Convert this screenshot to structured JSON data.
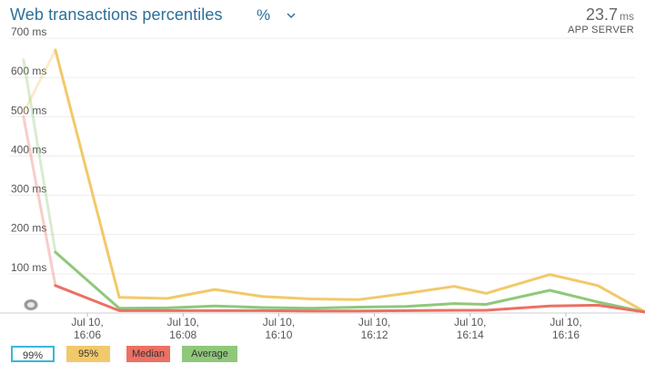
{
  "header": {
    "title": "Web transactions percentiles",
    "percent_toggle": "%",
    "summary_value": "23.7",
    "summary_unit": "ms",
    "summary_label": "APP SERVER"
  },
  "legend": [
    {
      "label": "99%",
      "color": "#3bb6d9",
      "style": "outline"
    },
    {
      "label": "95%",
      "color": "#f2c96a",
      "style": "filled"
    },
    {
      "label": "Median",
      "color": "#ec7064",
      "style": "filled"
    },
    {
      "label": "Average",
      "color": "#8fc87a",
      "style": "filled"
    }
  ],
  "chart_data": {
    "type": "line",
    "x": [
      "16:04:40",
      "16:05:20",
      "16:06:40",
      "16:07:40",
      "16:08:40",
      "16:09:40",
      "16:10:40",
      "16:11:40",
      "16:12:40",
      "16:13:40",
      "16:14:20",
      "16:15:40",
      "16:16:40",
      "16:17:40"
    ],
    "y_ticks": [
      "100 ms",
      "200 ms",
      "300 ms",
      "400 ms",
      "500 ms",
      "600 ms",
      "700 ms"
    ],
    "x_ticks": [
      {
        "line1": "Jul 10,",
        "line2": "16:06"
      },
      {
        "line1": "Jul 10,",
        "line2": "16:08"
      },
      {
        "line1": "Jul 10,",
        "line2": "16:10"
      },
      {
        "line1": "Jul 10,",
        "line2": "16:12"
      },
      {
        "line1": "Jul 10,",
        "line2": "16:14"
      },
      {
        "line1": "Jul 10,",
        "line2": "16:16"
      }
    ],
    "ylim": [
      0,
      700
    ],
    "grid": true,
    "series": [
      {
        "name": "95%",
        "color": "#f2c96a",
        "values": [
          510,
          670,
          40,
          37,
          60,
          42,
          36,
          34,
          50,
          68,
          50,
          98,
          70,
          2
        ]
      },
      {
        "name": "Average",
        "color": "#8fc87a",
        "values": [
          645,
          155,
          12,
          13,
          18,
          14,
          12,
          15,
          17,
          24,
          22,
          58,
          28,
          2
        ]
      },
      {
        "name": "Median",
        "color": "#ec7064",
        "values": [
          500,
          70,
          6,
          6,
          6,
          6,
          5,
          5,
          6,
          7,
          7,
          18,
          20,
          2
        ]
      }
    ]
  }
}
